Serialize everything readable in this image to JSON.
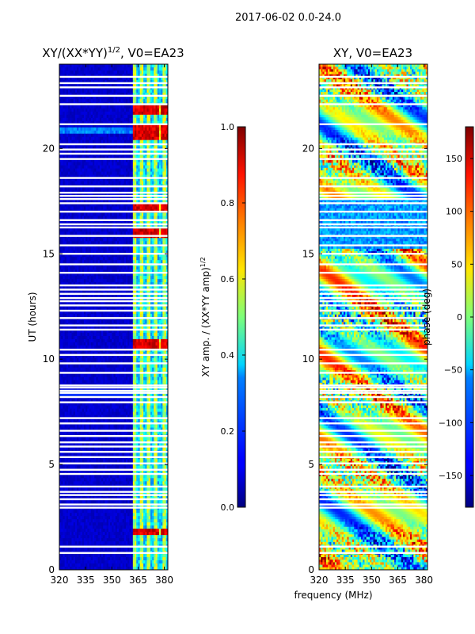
{
  "figure": {
    "suptitle": "2017-06-02 0.0-24.0",
    "shared_xlabel": "frequency (MHz)"
  },
  "chart_data": [
    {
      "type": "heatmap",
      "name": "amplitude-panel",
      "title_main": "XY/(XX*YY)",
      "title_sup": "1/2",
      "title_tail": ", V0=EA23",
      "ylabel": "UT (hours)",
      "xlim": [
        320,
        382
      ],
      "ylim": [
        0,
        24
      ],
      "xticks": [
        320,
        335,
        350,
        365,
        380
      ],
      "yticks": [
        0,
        5,
        10,
        15,
        20
      ],
      "colormap": "jet",
      "colorbar": {
        "label_main": "XY amp. / (XX*YY amp)",
        "label_sup": "1/2",
        "range": [
          0.0,
          1.0
        ],
        "ticks": [
          "0.0",
          "0.2",
          "0.4",
          "0.6",
          "0.8",
          "1.0"
        ],
        "tick_values": [
          0.0,
          0.2,
          0.4,
          0.6,
          0.8,
          1.0
        ]
      },
      "description_values": {
        "background_level": 0.05,
        "bright_channels_mhz": [
          363,
          367,
          371,
          375,
          380
        ],
        "hot_rows_ut": [
          10.7,
          16.0,
          17.2,
          20.6,
          21.0,
          21.8,
          1.8
        ]
      }
    },
    {
      "type": "heatmap",
      "name": "phase-panel",
      "title": "XY, V0=EA23",
      "xlim": [
        320,
        382
      ],
      "ylim": [
        0,
        24
      ],
      "xticks": [
        320,
        335,
        350,
        365,
        380
      ],
      "yticks": [
        0,
        5,
        10,
        15,
        20
      ],
      "colormap": "jet",
      "colorbar": {
        "label": "phase (deg)",
        "range": [
          -180,
          180
        ],
        "ticks": [
          "−150",
          "−100",
          "−50",
          "0",
          "50",
          "100",
          "150"
        ],
        "tick_values": [
          -150,
          -100,
          -50,
          0,
          50,
          100,
          150
        ]
      }
    }
  ],
  "flagged_rows_ut": [
    0.8,
    1.1,
    2.95,
    3.1,
    3.35,
    3.55,
    3.7,
    3.95,
    4.55,
    4.75,
    5.05,
    5.35,
    5.6,
    5.85,
    6.05,
    6.35,
    6.6,
    6.95,
    7.2,
    7.95,
    8.2,
    8.4,
    8.5,
    8.65,
    8.75,
    9.35,
    9.8,
    10.2,
    10.45,
    11.4,
    11.6,
    11.95,
    12.3,
    12.55,
    12.75,
    12.9,
    13.1,
    13.3,
    13.5,
    14.1,
    14.5,
    15.0,
    15.4,
    15.85,
    16.25,
    16.4,
    16.6,
    17.0,
    17.4,
    17.6,
    17.75,
    17.9,
    18.2,
    18.6,
    19.5,
    19.75,
    19.95,
    20.2,
    21.15,
    22.1,
    22.5,
    22.9,
    23.1,
    23.4
  ]
}
